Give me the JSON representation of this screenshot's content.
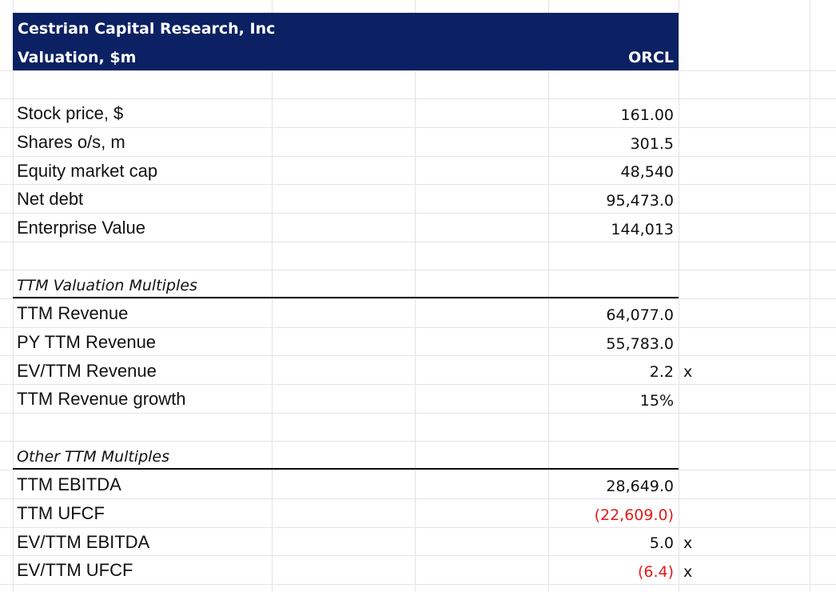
{
  "header": {
    "company": "Cestrian Capital Research, Inc",
    "subtitle": "Valuation, $m",
    "ticker": "ORCL"
  },
  "rows": {
    "stock_price": {
      "label": "Stock price, $",
      "value": "161.00"
    },
    "shares": {
      "label": "Shares o/s, m",
      "value": "301.5"
    },
    "market_cap": {
      "label": "Equity market cap",
      "value": "48,540"
    },
    "net_debt": {
      "label": "Net debt",
      "value": "95,473.0"
    },
    "ev": {
      "label": "Enterprise Value",
      "value": "144,013"
    }
  },
  "ttm_section": {
    "title": "TTM Valuation Multiples",
    "rows": [
      {
        "label": "TTM Revenue",
        "value": "64,077.0",
        "unit": ""
      },
      {
        "label": "PY TTM Revenue",
        "value": "55,783.0",
        "unit": ""
      },
      {
        "label": "EV/TTM Revenue",
        "value": "2.2",
        "unit": "x"
      },
      {
        "label": "TTM Revenue growth",
        "value": "15%",
        "unit": ""
      }
    ]
  },
  "other_section": {
    "title": "Other TTM Multiples",
    "rows": [
      {
        "label": "TTM EBITDA",
        "value": "28,649.0",
        "unit": ""
      },
      {
        "label": "TTM UFCF",
        "value": "(22,609.0)",
        "unit": ""
      },
      {
        "label": "EV/TTM EBITDA",
        "value": "5.0",
        "unit": "x"
      },
      {
        "label": "EV/TTM UFCF",
        "value": "(6.4)",
        "unit": "x"
      }
    ]
  },
  "colors": {
    "header_bg": "#0b2163",
    "negative": "#e21b1b",
    "gridline": "#e4e4e4"
  }
}
